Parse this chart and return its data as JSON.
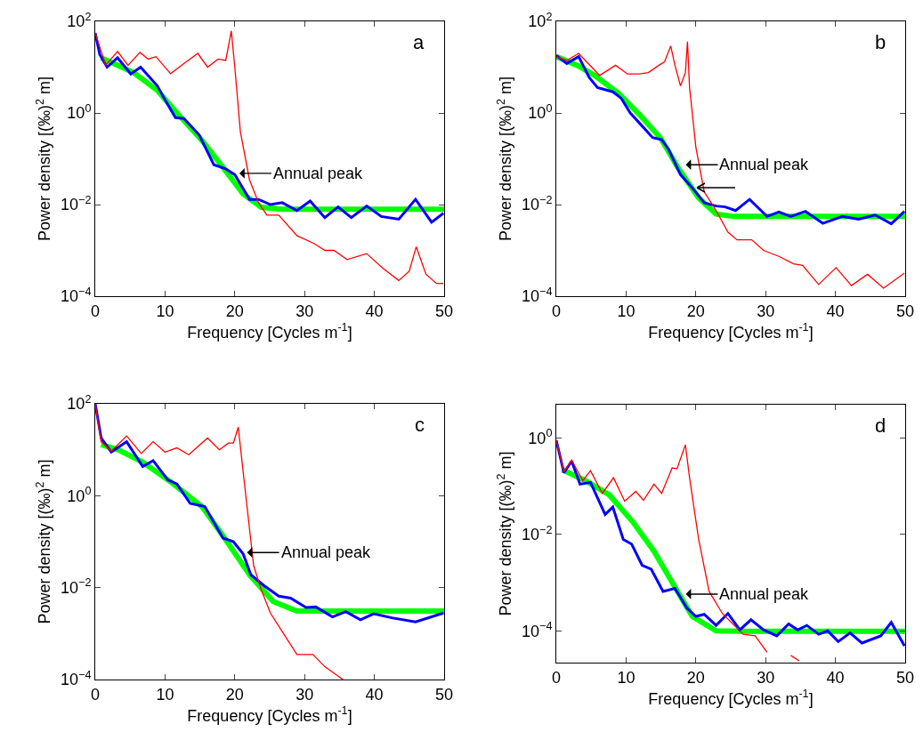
{
  "chart_data": [
    {
      "type": "line",
      "annotations": [
        "a",
        {
          "text": "Annual peak",
          "x": 20.4,
          "y": 0.048
        }
      ],
      "xlabel": "Frequency [Cycles m$^{-1}$]",
      "ylabel": "Power density [(‰)$^{2}$ m]",
      "log": "y",
      "xlim": [
        0,
        50
      ],
      "xticks": [
        0,
        10,
        20,
        30,
        40,
        50
      ],
      "ylim": [
        0.0001,
        100
      ],
      "yticks": [
        {
          "value": 0.0001,
          "label": "10$^{−4}$"
        },
        {
          "value": 0.01,
          "label": "10$^{−2}$"
        },
        {
          "value": 1,
          "label": "10$^{0}$"
        },
        {
          "value": 100,
          "label": "10$^{2}$"
        }
      ],
      "series": [
        {
          "color": "#00ff00",
          "x": [
            0.85,
            5.5,
            8.9,
            11.9,
            15.3,
            18.3,
            21.2,
            23.8,
            26.8,
            50
          ],
          "values": [
            16,
            7.6,
            3.1,
            0.93,
            0.25,
            0.065,
            0.017,
            0.0087,
            0.0079,
            0.0079
          ]
        },
        {
          "color": "#0000ff",
          "x": [
            0,
            0.64,
            1.7,
            3.2,
            5.1,
            6.5,
            8.9,
            10.2,
            11.5,
            12.7,
            14.9,
            17,
            18.7,
            20,
            22.1,
            23.4,
            25.1,
            26.8,
            28.9,
            30.8,
            32.9,
            34.8,
            36.7,
            38.9,
            41,
            43.5,
            45.9,
            48.2,
            49.9
          ],
          "values": [
            56,
            19,
            10,
            16,
            7.1,
            10,
            3.9,
            1.7,
            0.79,
            0.76,
            0.33,
            0.074,
            0.06,
            0.045,
            0.013,
            0.013,
            0.01,
            0.011,
            0.0074,
            0.012,
            0.0052,
            0.0089,
            0.0052,
            0.0093,
            0.0055,
            0.0048,
            0.013,
            0.0041,
            0.0065
          ]
        },
        {
          "color": "#ff0000",
          "x": [
            0,
            1.5,
            3.2,
            4.7,
            6.4,
            7.6,
            8.7,
            10.8,
            12.7,
            14.7,
            16.1,
            17.6,
            18.7,
            19.5,
            20,
            20.8,
            22.1,
            23.4,
            24.6,
            26.3,
            28.9,
            31.4,
            32.9,
            34.2,
            36.1,
            38.9,
            41.2,
            43.5,
            45,
            46,
            47.4,
            48.9,
            49.9
          ],
          "values": [
            56,
            11,
            22,
            11,
            21,
            15,
            17,
            7.2,
            12,
            20,
            10,
            15,
            14,
            62,
            10,
            0.39,
            0.035,
            0.011,
            0.0059,
            0.0059,
            0.0021,
            0.0014,
            0.001,
            0.001,
            0.00063,
            0.00085,
            0.00041,
            0.00022,
            0.00035,
            0.0012,
            0.0003,
            0.00019,
            0.00019
          ]
        }
      ]
    },
    {
      "type": "line",
      "annotations": [
        "b",
        {
          "text": "Annual peak",
          "x": 18.3,
          "y": 0.074
        }
      ],
      "xlabel": "Frequency [Cycles m$^{-1}$]",
      "ylabel": "Power density [(‰)$^{2}$ m]",
      "log": "y",
      "xlim": [
        0,
        50
      ],
      "xticks": [
        0,
        10,
        20,
        30,
        40,
        50
      ],
      "ylim": [
        0.0001,
        100
      ],
      "yticks": [
        {
          "value": 0.0001,
          "label": "10$^{−4}$"
        },
        {
          "value": 0.01,
          "label": "10$^{−2}$"
        },
        {
          "value": 1,
          "label": "10$^{0}$"
        },
        {
          "value": 100,
          "label": "10$^{2}$"
        }
      ],
      "series": [
        {
          "color": "#00ff00",
          "x": [
            0,
            3,
            5.5,
            8.9,
            11.9,
            14.9,
            17.4,
            20.4,
            22.9,
            25.5,
            50
          ],
          "values": [
            17,
            11,
            6.6,
            2.7,
            0.93,
            0.29,
            0.065,
            0.014,
            0.0062,
            0.0055,
            0.0055
          ]
        },
        {
          "color": "#0000ff",
          "x": [
            0,
            1.5,
            3.2,
            4.7,
            5.9,
            8.1,
            9.3,
            10.6,
            12.3,
            13.8,
            15.1,
            16.1,
            17.8,
            19.5,
            21.2,
            22.9,
            24.2,
            25.7,
            27.7,
            30.2,
            31.9,
            33.6,
            35.7,
            38.2,
            41,
            43.3,
            45.7,
            48,
            49.9
          ],
          "values": [
            18,
            12,
            17,
            6.0,
            3.6,
            2.9,
            2.1,
            1.0,
            0.52,
            0.29,
            0.26,
            0.16,
            0.045,
            0.023,
            0.011,
            0.0093,
            0.0089,
            0.0074,
            0.013,
            0.0055,
            0.0069,
            0.0055,
            0.0071,
            0.0039,
            0.0055,
            0.0048,
            0.0059,
            0.0038,
            0.0071
          ]
        },
        {
          "color": "#ff0000",
          "x": [
            0,
            1.5,
            3.2,
            6.2,
            8.5,
            10.2,
            11.9,
            13.2,
            14.7,
            15.5,
            16.4,
            17,
            17.8,
            18.5,
            18.8,
            19.1,
            20,
            21.2,
            22.9,
            24.6,
            25.9,
            28,
            29.7,
            31.9,
            34,
            35.3,
            37.6,
            40.1,
            42.3,
            44.6,
            46.9,
            49.9
          ],
          "values": [
            17,
            14,
            20,
            6.6,
            11,
            7.1,
            7.1,
            7.6,
            11,
            13,
            29,
            11,
            3.9,
            7.6,
            36,
            3.6,
            0.18,
            0.019,
            0.0074,
            0.0025,
            0.0017,
            0.0017,
            0.001,
            0.00074,
            0.00051,
            0.00047,
            0.00018,
            0.00042,
            0.00017,
            0.0003,
            0.00015,
            0.00032
          ]
        }
      ]
    },
    {
      "type": "line",
      "annotations": [
        "c",
        {
          "text": "Annual peak",
          "x": 21.5,
          "y": 0.058
        }
      ],
      "xlabel": "Frequency [Cycles m$^{-1}$]",
      "ylabel": "Power density [(‰)$^{2}$ m]",
      "log": "y",
      "xlim": [
        0,
        50
      ],
      "xticks": [
        0,
        10,
        20,
        30,
        40,
        50
      ],
      "ylim": [
        0.0001,
        100
      ],
      "yticks": [
        {
          "value": 0.0001,
          "label": "10$^{−4}$"
        },
        {
          "value": 0.01,
          "label": "10$^{−2}$"
        },
        {
          "value": 1,
          "label": "10$^{0}$"
        },
        {
          "value": 100,
          "label": "10$^{2}$"
        }
      ],
      "series": [
        {
          "color": "#00ff00",
          "x": [
            0.85,
            3.4,
            6.8,
            11,
            15.3,
            18.7,
            22.1,
            25.5,
            28.9,
            50
          ],
          "values": [
            13,
            9.8,
            5.4,
            1.9,
            0.58,
            0.11,
            0.019,
            0.005,
            0.0031,
            0.0031
          ]
        },
        {
          "color": "#0000ff",
          "x": [
            0,
            0.85,
            2.3,
            4.5,
            6.8,
            8.3,
            10.4,
            11.7,
            13.6,
            15.7,
            18.3,
            19.8,
            21.2,
            22.3,
            24.2,
            26.3,
            28,
            30.2,
            31.6,
            34,
            35.9,
            38,
            39.9,
            42.5,
            45.9,
            49.9
          ],
          "values": [
            100,
            18,
            8.9,
            15,
            4.3,
            5.8,
            2.2,
            1.8,
            0.68,
            0.58,
            0.12,
            0.1,
            0.054,
            0.019,
            0.011,
            0.0065,
            0.0059,
            0.0037,
            0.0038,
            0.0023,
            0.003,
            0.002,
            0.0027,
            0.0022,
            0.0018,
            0.0028
          ]
        },
        {
          "color": "#ff0000",
          "x": [
            0,
            0.85,
            2.3,
            4.5,
            6.6,
            8.3,
            10,
            11.7,
            13.4,
            16.1,
            17.8,
            19.1,
            19.8,
            20.5,
            21,
            21.7,
            22.7,
            23.8,
            25.1,
            26.8,
            28.9,
            31.2,
            32.9,
            35.5
          ],
          "values": [
            100,
            15,
            9.3,
            20,
            8.3,
            15,
            8.9,
            11,
            7.8,
            18,
            10,
            14,
            14,
            31,
            6.2,
            0.68,
            0.03,
            0.0089,
            0.0028,
            0.0011,
            0.00035,
            0.00035,
            0.00019,
            0.0001
          ]
        }
      ]
    },
    {
      "type": "line",
      "annotations": [
        "d",
        {
          "text": "Annual peak",
          "x": 18.3,
          "y": 0.00058
        }
      ],
      "xlabel": "Frequency [Cycles m$^{-1}$]",
      "ylabel": "Power density [(‰)$^{2}$ m]",
      "log": "y",
      "xlim": [
        0,
        50
      ],
      "xticks": [
        0,
        10,
        20,
        30,
        40,
        50
      ],
      "ylim": [
        2.2e-05,
        4.9
      ],
      "yticks": [
        {
          "value": 0.0001,
          "label": "10$^{−4}$"
        },
        {
          "value": 0.01,
          "label": "10$^{−2}$"
        },
        {
          "value": 1,
          "label": "10$^{0}$"
        }
      ],
      "series": [
        {
          "color": "#00ff00",
          "x": [
            0.85,
            4.2,
            7.6,
            11,
            14,
            17,
            19.5,
            22.9,
            26.8,
            50
          ],
          "values": [
            0.22,
            0.13,
            0.066,
            0.018,
            0.0045,
            0.00081,
            0.0002,
            0.0001,
            9.8e-05,
            9.8e-05
          ]
        },
        {
          "color": "#0000ff",
          "x": [
            0,
            1.1,
            2.2,
            3.4,
            4.9,
            7,
            8.1,
            9.6,
            10.8,
            12.3,
            13.6,
            15.3,
            17,
            18.7,
            20,
            21.2,
            22.9,
            24.6,
            26.3,
            27.9,
            29.7,
            31.6,
            33.3,
            34.6,
            35.9,
            37.6,
            38.9,
            40.4,
            42.1,
            43.8,
            46.5,
            48,
            49.9
          ],
          "values": [
            0.89,
            0.19,
            0.33,
            0.11,
            0.12,
            0.026,
            0.037,
            0.0079,
            0.0063,
            0.0023,
            0.0019,
            0.00066,
            0.00076,
            0.0003,
            0.0002,
            0.00022,
            0.00013,
            0.00023,
            0.000105,
            0.00017,
            0.000105,
            7.9e-05,
            0.00014,
            0.000105,
            0.00013,
            8.5e-05,
            0.0001,
            6e-05,
            9.1e-05,
            5.6e-05,
            7.9e-05,
            0.00015,
            4.9e-05
          ]
        },
        {
          "color": "#ff0000",
          "x": [
            0,
            1.1,
            2.2,
            3.8,
            4.9,
            6.6,
            8.2,
            9.8,
            11.4,
            12.5,
            14,
            15.1,
            16.6,
            17.3,
            18.5,
            19.1,
            20.4,
            21.9,
            23.8,
            25.5,
            26.8,
            28.5,
            30.2,
            32,
            33.6,
            34.8
          ],
          "values": [
            0.89,
            0.2,
            0.35,
            0.13,
            0.21,
            0.071,
            0.15,
            0.049,
            0.078,
            0.051,
            0.11,
            0.071,
            0.24,
            0.23,
            0.72,
            0.15,
            0.0079,
            0.00066,
            0.00023,
            0.00013,
            8.5e-05,
            7.9e-05,
            3.6e-05,
            null,
            3.1e-05,
            2.4e-05
          ]
        }
      ]
    }
  ]
}
